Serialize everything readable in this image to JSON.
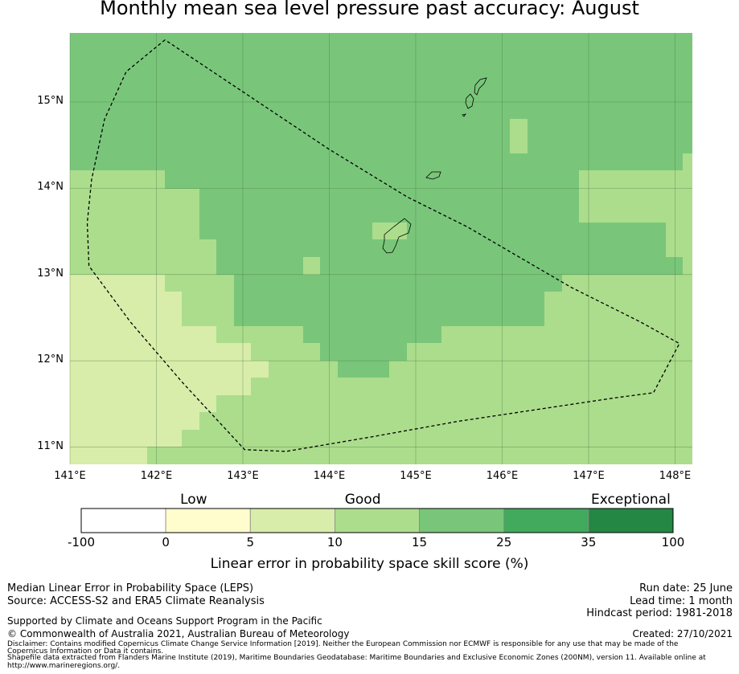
{
  "title": "Monthly mean sea level pressure past accuracy: August",
  "map": {
    "lon_range": [
      141,
      148.2
    ],
    "lat_range": [
      10.8,
      15.8
    ],
    "lat_labels": [
      {
        "value": 15,
        "label": "15°N"
      },
      {
        "value": 14,
        "label": "14°N"
      },
      {
        "value": 13,
        "label": "13°N"
      },
      {
        "value": 12,
        "label": "12°N"
      },
      {
        "value": 11,
        "label": "11°N"
      }
    ],
    "lon_labels": [
      {
        "value": 141,
        "label": "141°E"
      },
      {
        "value": 142,
        "label": "142°E"
      },
      {
        "value": 143,
        "label": "143°E"
      },
      {
        "value": 144,
        "label": "144°E"
      },
      {
        "value": 145,
        "label": "145°E"
      },
      {
        "value": 146,
        "label": "146°E"
      },
      {
        "value": 147,
        "label": "147°E"
      },
      {
        "value": 148,
        "label": "148°E"
      }
    ],
    "class_colors": [
      "#ffffff",
      "#fffdcd",
      "#d8edaa",
      "#acdd8c",
      "#79c67a",
      "#41aa5c",
      "#248743"
    ],
    "eez_boundary": [
      [
        142.1,
        15.72
      ],
      [
        141.65,
        15.35
      ],
      [
        141.4,
        14.8
      ],
      [
        141.25,
        14.1
      ],
      [
        141.2,
        13.6
      ],
      [
        141.22,
        13.1
      ],
      [
        141.7,
        12.45
      ],
      [
        142.3,
        11.75
      ],
      [
        143.02,
        10.97
      ],
      [
        143.5,
        10.95
      ],
      [
        144.5,
        11.12
      ],
      [
        145.5,
        11.3
      ],
      [
        146.5,
        11.45
      ],
      [
        147.3,
        11.57
      ],
      [
        147.75,
        11.63
      ],
      [
        148.05,
        12.2
      ],
      [
        147.6,
        12.45
      ],
      [
        146.8,
        12.85
      ],
      [
        145.6,
        13.55
      ],
      [
        144.9,
        13.9
      ],
      [
        144.0,
        14.45
      ],
      [
        142.1,
        15.72
      ]
    ]
  },
  "colorbar": {
    "qualitative_labels": [
      {
        "label": "Low",
        "boundary": 1.33
      },
      {
        "label": "Good",
        "boundary": 3.33
      },
      {
        "label": "Exceptional",
        "boundary": 6.5
      }
    ],
    "boundaries": [
      "-100",
      "0",
      "5",
      "10",
      "15",
      "25",
      "35",
      "100"
    ],
    "colors": [
      "#ffffff",
      "#fffdcd",
      "#d8edaa",
      "#acdd8c",
      "#79c67a",
      "#41aa5c",
      "#248743"
    ],
    "title": "Linear error in probability space skill score (%)"
  },
  "footer": {
    "left1": "Median Linear Error in Probability Space (LEPS)",
    "left2": "Source: ACCESS-S2 and ERA5 Climate Reanalysis",
    "left3": "Supported by Climate and Oceans Support Program in the Pacific",
    "left4": "© Commonwealth of Australia 2021, Australian Bureau of Meteorology",
    "disclaimer1": "Disclaimer: Contains modified Copernicus Climate Change Service Information [2019]. Neither the European Commission nor ECMWF is responsible for any use that may be made of the",
    "disclaimer2": "Copernicus Information or Data it contains.",
    "disclaimer3": "Shapefile data extracted from Flanders Marine Institute (2019), Maritime Boundaries Geodatabase: Maritime Boundaries and Exclusive Economic Zones (200NM), version 11. Available online at",
    "disclaimer4": "http://www.marineregions.org/.",
    "run_date": "Run date: 25 June",
    "lead_time": "Lead time: 1 month",
    "hindcast": "Hindcast period: 1981-2018",
    "created": "Created: 27/10/2021"
  }
}
